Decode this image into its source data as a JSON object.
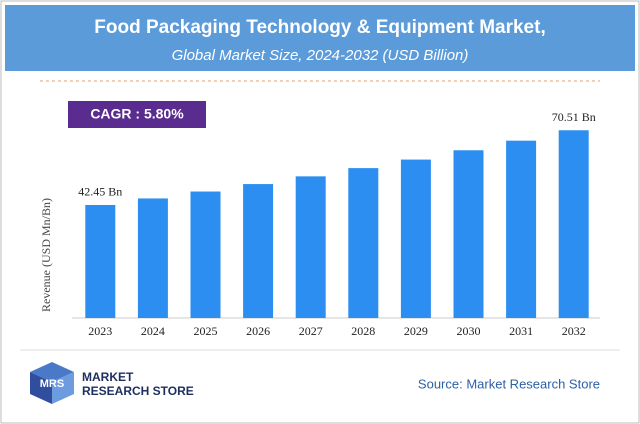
{
  "chart_data": {
    "type": "bar",
    "title": "Food Packaging Technology & Equipment Market,",
    "subtitle": "Global Market Size, 2024-2032 (USD Billion)",
    "y_label": "Revenue (USD Mn/Bn)",
    "annotations": [
      "CAGR : 5.80%"
    ],
    "categories": [
      "2023",
      "2024",
      "2025",
      "2026",
      "2027",
      "2028",
      "2029",
      "2030",
      "2031",
      "2032"
    ],
    "values": [
      42.45,
      44.9,
      47.5,
      50.3,
      53.2,
      56.3,
      59.5,
      63.0,
      66.6,
      70.51
    ],
    "value_labels": [
      "42.45 Bn",
      null,
      null,
      null,
      null,
      null,
      null,
      null,
      null,
      "70.51 Bn"
    ],
    "color": "#2b8ef0",
    "ylim": [
      0,
      80
    ],
    "source": "Source: Market Research Store",
    "logo": [
      "MARKET",
      "RESEARCH STORE"
    ]
  }
}
